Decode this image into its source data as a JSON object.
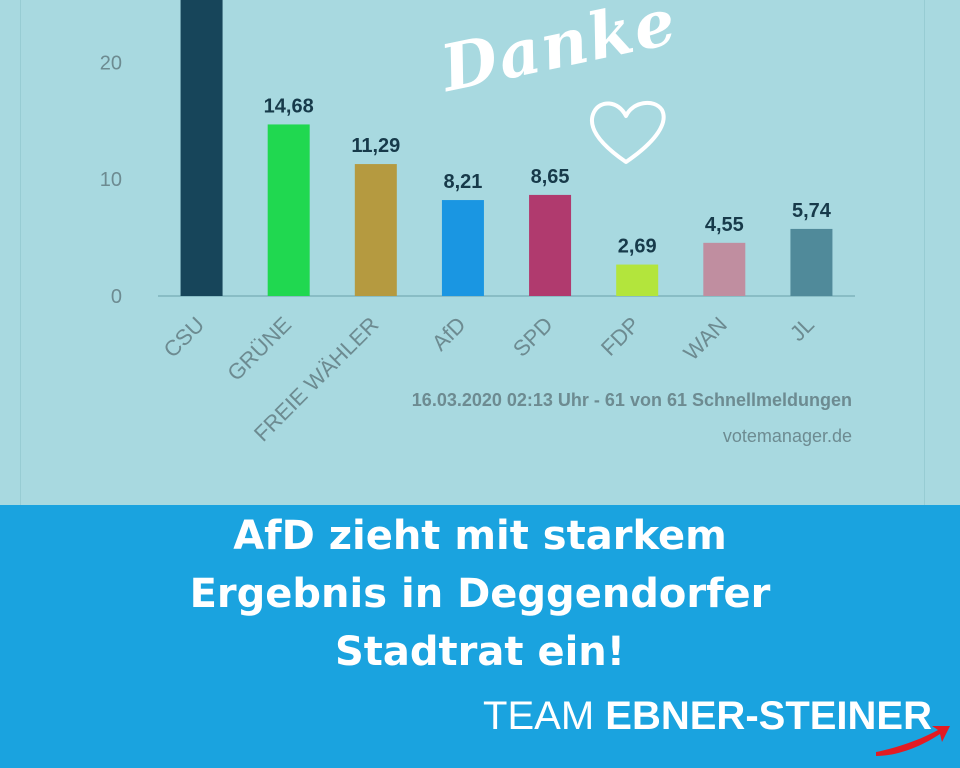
{
  "chart_data": {
    "type": "bar",
    "categories": [
      "CSU",
      "GRÜNE",
      "FREIE WÄHLER",
      "AfD",
      "SPD",
      "FDP",
      "WAN",
      "JL"
    ],
    "values": [
      null,
      14.68,
      11.29,
      8.21,
      8.65,
      2.69,
      4.55,
      5.74
    ],
    "data_labels": [
      "",
      "14,68",
      "11,29",
      "8,21",
      "8,65",
      "2,69",
      "4,55",
      "5,74"
    ],
    "colors": [
      "#17455a",
      "#20d850",
      "#b59a40",
      "#1a96e2",
      "#b03a6e",
      "#b3e53c",
      "#c08ea0",
      "#508a9a"
    ],
    "yticks": [
      0,
      10,
      20
    ],
    "ylim": [
      0,
      25.5
    ],
    "grid": false,
    "footnote": "16.03.2020 02:13 Uhr - 61 von 61 Schnellmeldungen",
    "source": "votemanager.de"
  },
  "overlay": {
    "script_text": "Danke",
    "heart_icon": "heart-outline-icon"
  },
  "banner": {
    "headline_lines": [
      "AfD zieht mit starkem",
      "Ergebnis in Deggendorfer",
      "Stadtrat ein!"
    ],
    "brand_prefix": "TEAM",
    "brand_name": "EBNER-STEINER",
    "background": "#1aa3df"
  }
}
